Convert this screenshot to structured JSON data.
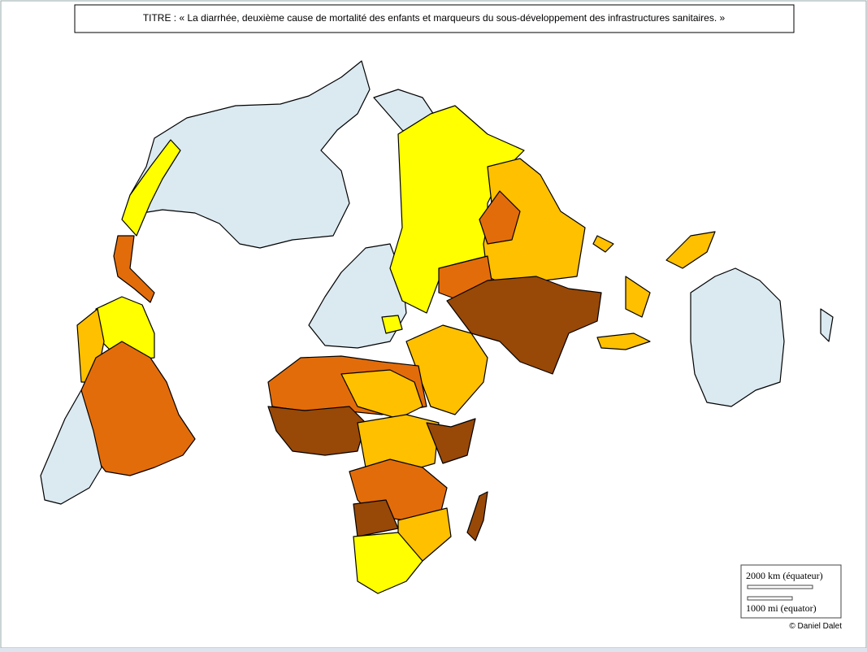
{
  "title": "TITRE : « La diarrhée, deuxième cause de mortalité des enfants et marqueurs du sous-développement des infrastructures sanitaires. »",
  "scale": {
    "km": "2000 km (équateur)",
    "mi": "1000 mi (equator)"
  },
  "credit": "© Daniel Dalet"
}
